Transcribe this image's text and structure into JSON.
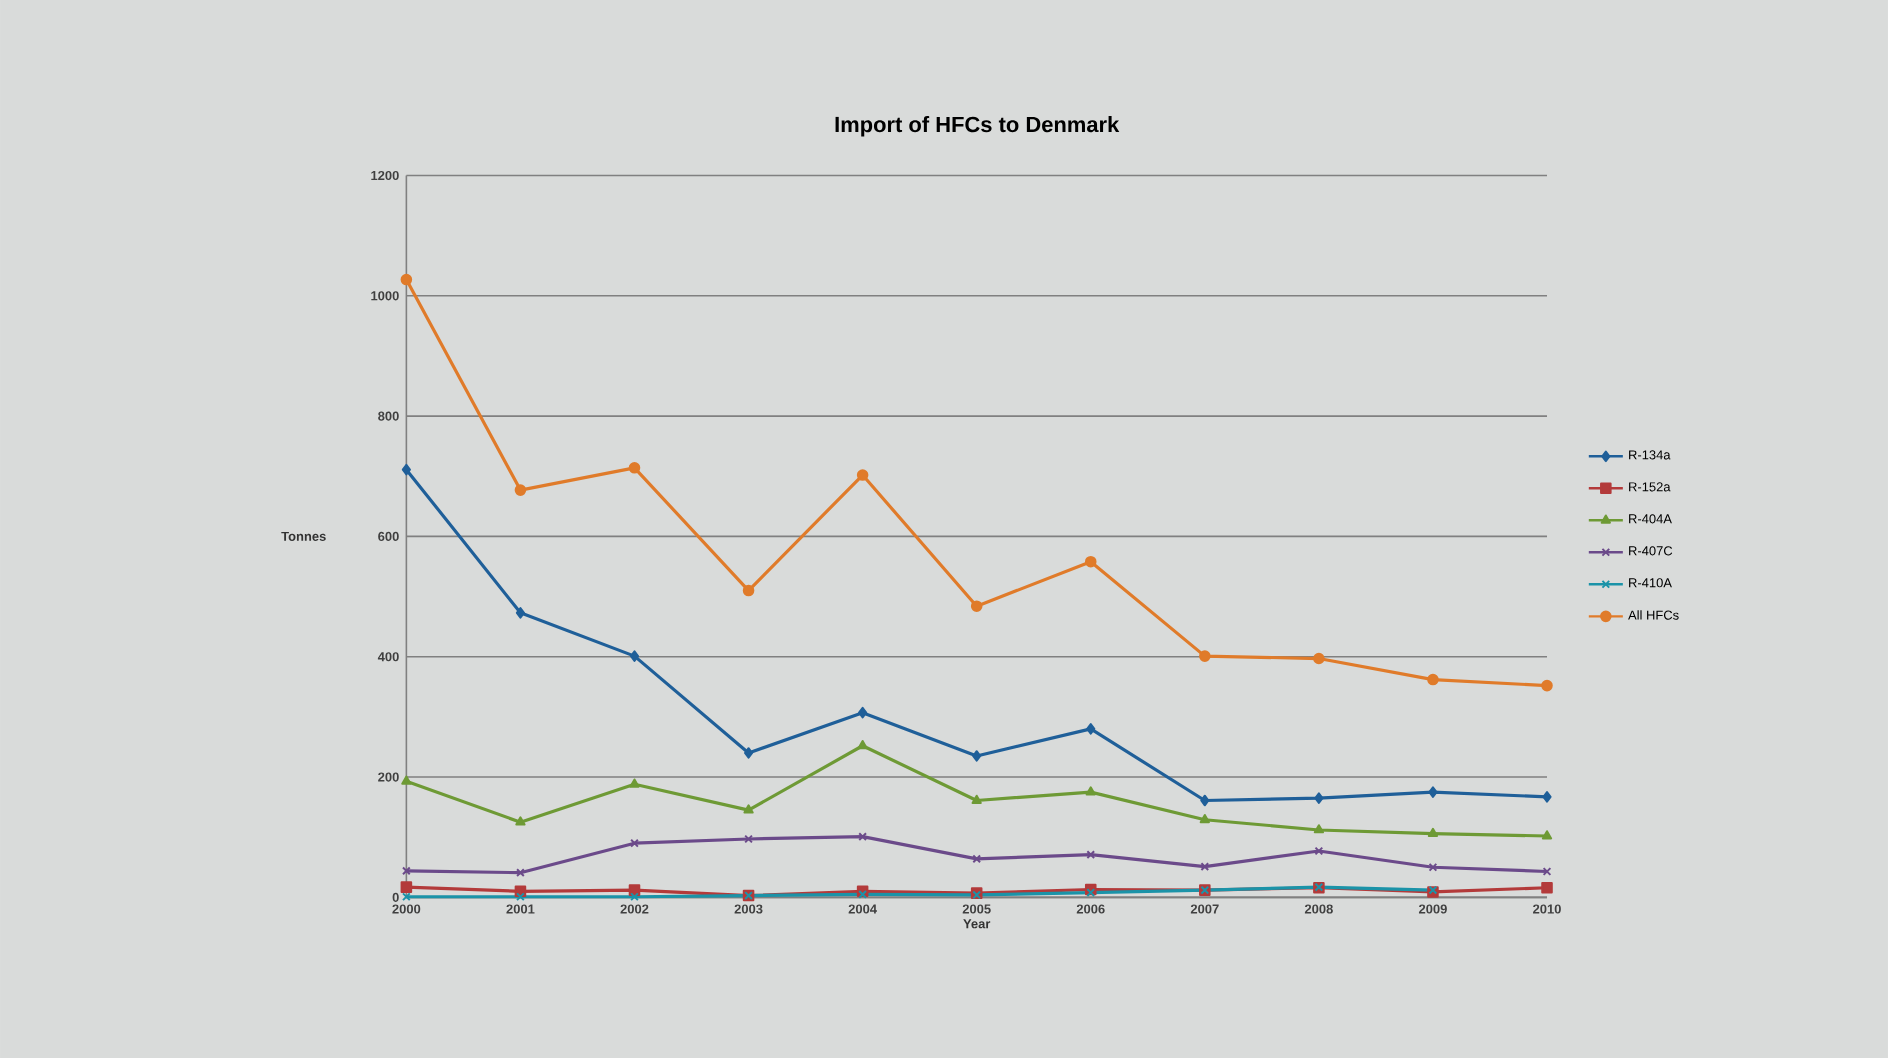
{
  "chart_data": {
    "type": "line",
    "title": "Import of HFCs to Denmark",
    "xlabel": "Year",
    "ylabel": "Tonnes",
    "x": [
      2000,
      2001,
      2002,
      2003,
      2004,
      2005,
      2006,
      2007,
      2008,
      2009,
      2010
    ],
    "series": [
      {
        "name": "R-134a",
        "color": "#1f5f99",
        "marker": "diamond",
        "values": [
          711,
          473,
          401,
          240,
          307,
          235,
          280,
          161,
          165,
          175,
          167
        ]
      },
      {
        "name": "R-152a",
        "color": "#b33a3a",
        "marker": "square",
        "values": [
          17,
          10,
          12,
          3,
          10,
          7,
          13,
          12,
          16,
          9,
          16
        ]
      },
      {
        "name": "R-404A",
        "color": "#6e9a35",
        "marker": "triangle",
        "values": [
          193,
          125,
          188,
          145,
          252,
          161,
          175,
          129,
          112,
          106,
          102
        ]
      },
      {
        "name": "R-407C",
        "color": "#6b4a8a",
        "marker": "cross",
        "values": [
          44,
          41,
          90,
          97,
          101,
          64,
          71,
          51,
          77,
          50,
          43
        ]
      },
      {
        "name": "R-410A",
        "color": "#1b93a8",
        "marker": "cross",
        "values": [
          1,
          1,
          1,
          3,
          5,
          4,
          8,
          12,
          17,
          12,
          null
        ]
      },
      {
        "name": "All HFCs",
        "color": "#e07b2a",
        "marker": "circle",
        "values": [
          1027,
          677,
          714,
          510,
          702,
          484,
          558,
          401,
          397,
          362,
          352
        ]
      }
    ],
    "xlim": [
      2000,
      2010
    ],
    "xticks": [
      2000,
      2001,
      2002,
      2003,
      2004,
      2005,
      2006,
      2007,
      2008,
      2009,
      2010
    ],
    "ylim": [
      0,
      1200
    ],
    "yticks": [
      0,
      200,
      400,
      600,
      800,
      1000,
      1200
    ],
    "grid": "y",
    "legend": "right",
    "line_style": "solid"
  }
}
